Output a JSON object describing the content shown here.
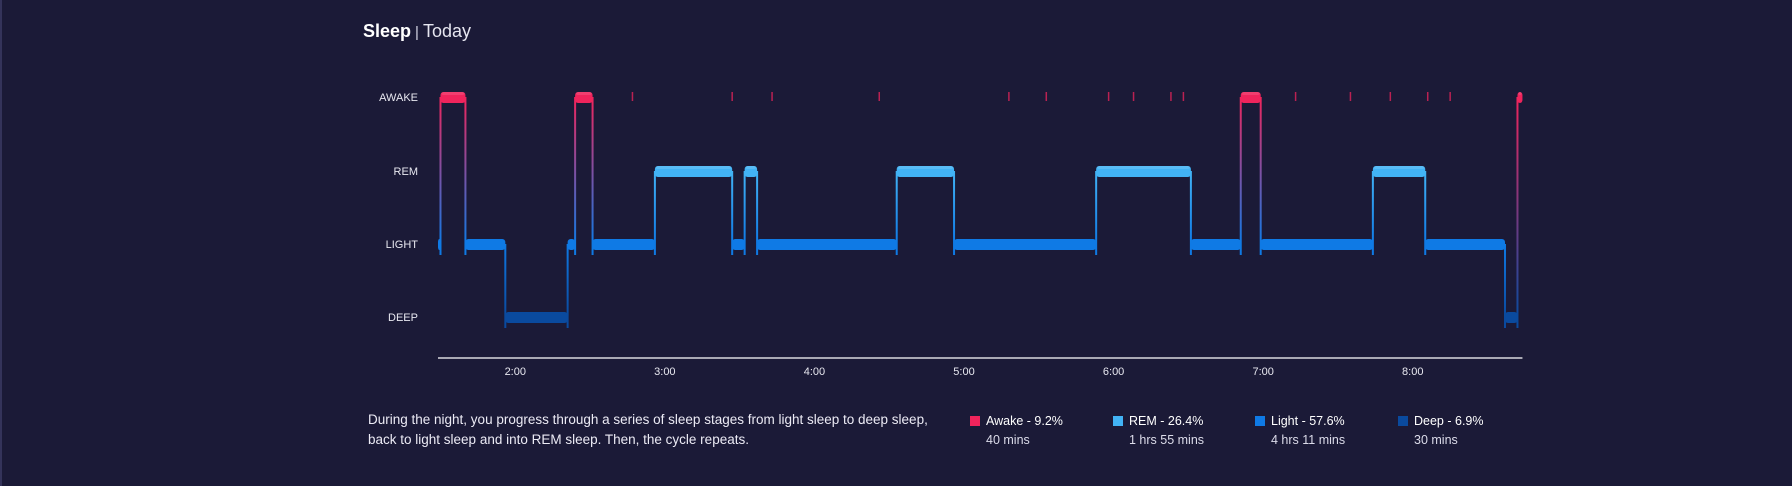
{
  "header": {
    "title": "Sleep",
    "period": "Today"
  },
  "description": "During the night, you progress through a series of sleep stages from light sleep to deep sleep, back to light sleep and into REM sleep. Then, the cycle repeats.",
  "colors": {
    "background": "#1b1a37",
    "awake": "#f0245c",
    "rem": "#42b3f5",
    "light": "#0f7ae5",
    "deep": "#0a4a9e",
    "axis": "#ffffff"
  },
  "legend": [
    {
      "label": "Awake - 9.2%",
      "duration": "40 mins",
      "color": "#f0245c"
    },
    {
      "label": "REM - 26.4%",
      "duration": "1 hrs 55 mins",
      "color": "#42b3f5"
    },
    {
      "label": "Light - 57.6%",
      "duration": "4 hrs 11 mins",
      "color": "#0f7ae5"
    },
    {
      "label": "Deep - 6.9%",
      "duration": "30 mins",
      "color": "#0a4a9e"
    }
  ],
  "chart_data": {
    "type": "area",
    "stages": [
      "AWAKE",
      "REM",
      "LIGHT",
      "DEEP"
    ],
    "x_ticks": [
      "2:00",
      "3:00",
      "4:00",
      "5:00",
      "6:00",
      "7:00",
      "8:00"
    ],
    "x_range": [
      "1:29",
      "8:44"
    ],
    "segments": [
      {
        "start": "1:29",
        "end": "1:30",
        "stage": "LIGHT"
      },
      {
        "start": "1:30",
        "end": "1:40",
        "stage": "AWAKE"
      },
      {
        "start": "1:40",
        "end": "1:56",
        "stage": "LIGHT"
      },
      {
        "start": "1:56",
        "end": "2:21",
        "stage": "DEEP"
      },
      {
        "start": "2:21",
        "end": "2:24",
        "stage": "LIGHT"
      },
      {
        "start": "2:24",
        "end": "2:31",
        "stage": "AWAKE"
      },
      {
        "start": "2:31",
        "end": "2:56",
        "stage": "LIGHT"
      },
      {
        "start": "2:56",
        "end": "3:27",
        "stage": "REM"
      },
      {
        "start": "3:27",
        "end": "3:32",
        "stage": "LIGHT"
      },
      {
        "start": "3:32",
        "end": "3:37",
        "stage": "REM"
      },
      {
        "start": "3:37",
        "end": "4:33",
        "stage": "LIGHT"
      },
      {
        "start": "4:33",
        "end": "4:56",
        "stage": "REM"
      },
      {
        "start": "4:56",
        "end": "5:53",
        "stage": "LIGHT"
      },
      {
        "start": "5:53",
        "end": "6:31",
        "stage": "REM"
      },
      {
        "start": "6:31",
        "end": "6:51",
        "stage": "LIGHT"
      },
      {
        "start": "6:51",
        "end": "6:59",
        "stage": "AWAKE"
      },
      {
        "start": "6:59",
        "end": "7:44",
        "stage": "LIGHT"
      },
      {
        "start": "7:44",
        "end": "8:05",
        "stage": "REM"
      },
      {
        "start": "8:05",
        "end": "8:37",
        "stage": "LIGHT"
      },
      {
        "start": "8:37",
        "end": "8:42",
        "stage": "DEEP"
      },
      {
        "start": "8:42",
        "end": "8:44",
        "stage": "AWAKE"
      }
    ],
    "brief_awake_marks": [
      "2:47",
      "3:27",
      "3:43",
      "4:26",
      "5:18",
      "5:33",
      "5:58",
      "6:08",
      "6:23",
      "6:28",
      "7:13",
      "7:35",
      "7:51",
      "8:06",
      "8:15"
    ]
  }
}
